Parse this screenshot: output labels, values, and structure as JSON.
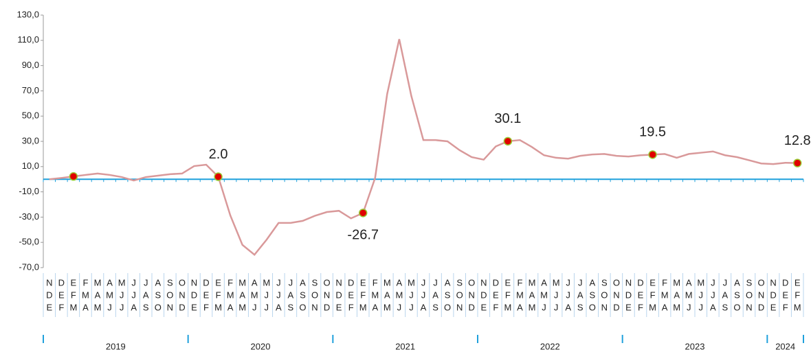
{
  "chart_data": {
    "type": "line",
    "categories": [
      [
        "N",
        "D",
        "E"
      ],
      [
        "D",
        "E",
        "F"
      ],
      [
        "E",
        "F",
        "M"
      ],
      [
        "F",
        "M",
        "A"
      ],
      [
        "M",
        "A",
        "M"
      ],
      [
        "A",
        "M",
        "J"
      ],
      [
        "M",
        "J",
        "J"
      ],
      [
        "J",
        "J",
        "A"
      ],
      [
        "J",
        "A",
        "S"
      ],
      [
        "A",
        "S",
        "O"
      ],
      [
        "S",
        "O",
        "N"
      ],
      [
        "O",
        "N",
        "D"
      ],
      [
        "N",
        "D",
        "E"
      ],
      [
        "D",
        "E",
        "F"
      ],
      [
        "E",
        "F",
        "M"
      ],
      [
        "F",
        "M",
        "A"
      ],
      [
        "M",
        "A",
        "M"
      ],
      [
        "A",
        "M",
        "J"
      ],
      [
        "M",
        "J",
        "J"
      ],
      [
        "J",
        "J",
        "A"
      ],
      [
        "J",
        "A",
        "S"
      ],
      [
        "A",
        "S",
        "O"
      ],
      [
        "S",
        "O",
        "N"
      ],
      [
        "O",
        "N",
        "D"
      ],
      [
        "N",
        "D",
        "E"
      ],
      [
        "D",
        "E",
        "F"
      ],
      [
        "E",
        "F",
        "M"
      ],
      [
        "F",
        "M",
        "A"
      ],
      [
        "M",
        "A",
        "M"
      ],
      [
        "A",
        "M",
        "J"
      ],
      [
        "M",
        "J",
        "J"
      ],
      [
        "J",
        "J",
        "A"
      ],
      [
        "J",
        "A",
        "S"
      ],
      [
        "A",
        "S",
        "O"
      ],
      [
        "S",
        "O",
        "N"
      ],
      [
        "O",
        "N",
        "D"
      ],
      [
        "N",
        "D",
        "E"
      ],
      [
        "D",
        "E",
        "F"
      ],
      [
        "E",
        "F",
        "M"
      ],
      [
        "F",
        "M",
        "A"
      ],
      [
        "M",
        "A",
        "M"
      ],
      [
        "A",
        "M",
        "J"
      ],
      [
        "M",
        "J",
        "J"
      ],
      [
        "J",
        "J",
        "A"
      ],
      [
        "J",
        "A",
        "S"
      ],
      [
        "A",
        "S",
        "O"
      ],
      [
        "S",
        "O",
        "N"
      ],
      [
        "O",
        "N",
        "D"
      ],
      [
        "N",
        "D",
        "E"
      ],
      [
        "D",
        "E",
        "F"
      ],
      [
        "E",
        "F",
        "M"
      ],
      [
        "F",
        "M",
        "A"
      ],
      [
        "M",
        "A",
        "M"
      ],
      [
        "A",
        "M",
        "J"
      ],
      [
        "M",
        "J",
        "J"
      ],
      [
        "J",
        "J",
        "A"
      ],
      [
        "J",
        "A",
        "S"
      ],
      [
        "A",
        "S",
        "O"
      ],
      [
        "S",
        "O",
        "N"
      ],
      [
        "O",
        "N",
        "D"
      ],
      [
        "N",
        "D",
        "E"
      ],
      [
        "D",
        "E",
        "F"
      ],
      [
        "E",
        "F",
        "M"
      ]
    ],
    "year_groups": [
      {
        "label": "2019",
        "start": 0,
        "end": 11
      },
      {
        "label": "2020",
        "start": 12,
        "end": 23
      },
      {
        "label": "2021",
        "start": 24,
        "end": 35
      },
      {
        "label": "2022",
        "start": 36,
        "end": 47
      },
      {
        "label": "2023",
        "start": 48,
        "end": 59
      },
      {
        "label": "2024",
        "start": 60,
        "end": 62
      }
    ],
    "series": [
      {
        "color": "#d9999a",
        "values": [
          0,
          1,
          2.2,
          3.4,
          4.5,
          3.4,
          1.7,
          -1,
          1.7,
          2.8,
          4,
          4.5,
          10.4,
          11.5,
          2.0,
          -28.7,
          -52,
          -59.8,
          -48,
          -34.6,
          -34.6,
          -33,
          -29,
          -26,
          -25,
          -31,
          -26.7,
          1,
          67.5,
          111,
          66,
          31,
          31,
          30,
          23,
          17.5,
          15.5,
          26,
          30.1,
          31,
          25.5,
          19,
          17,
          16.3,
          18.5,
          19.6,
          20,
          18.5,
          18,
          19,
          19.5,
          20,
          17,
          20,
          21,
          22,
          19,
          17.5,
          15,
          12.5,
          12,
          13,
          12.8
        ],
        "value_labels": [
          null,
          null,
          null,
          null,
          null,
          null,
          null,
          null,
          null,
          null,
          null,
          null,
          null,
          null,
          "2.0",
          null,
          null,
          null,
          null,
          null,
          null,
          null,
          null,
          null,
          null,
          null,
          "-26.7",
          null,
          null,
          null,
          null,
          null,
          null,
          null,
          null,
          null,
          null,
          null,
          "30.1",
          null,
          null,
          null,
          null,
          null,
          null,
          null,
          null,
          null,
          null,
          null,
          "19.5",
          null,
          null,
          null,
          null,
          null,
          null,
          null,
          null,
          null,
          null,
          null,
          "12.8"
        ]
      }
    ],
    "markers": [
      2,
      14,
      26,
      38,
      50,
      62
    ],
    "marker_color": "#e00000",
    "ylim": [
      -70,
      130
    ],
    "yticks": [
      {
        "value": -70,
        "label": "-70,0"
      },
      {
        "value": -50,
        "label": "-50,0"
      },
      {
        "value": -30,
        "label": "-30,0"
      },
      {
        "value": -10,
        "label": "-10,0"
      },
      {
        "value": 10,
        "label": "10,0"
      },
      {
        "value": 30,
        "label": "30,0"
      },
      {
        "value": 50,
        "label": "50,0"
      },
      {
        "value": 70,
        "label": "70,0"
      },
      {
        "value": 90,
        "label": "90,0"
      },
      {
        "value": 110,
        "label": "110,0"
      },
      {
        "value": 130,
        "label": "130,0"
      }
    ],
    "grid": false
  }
}
